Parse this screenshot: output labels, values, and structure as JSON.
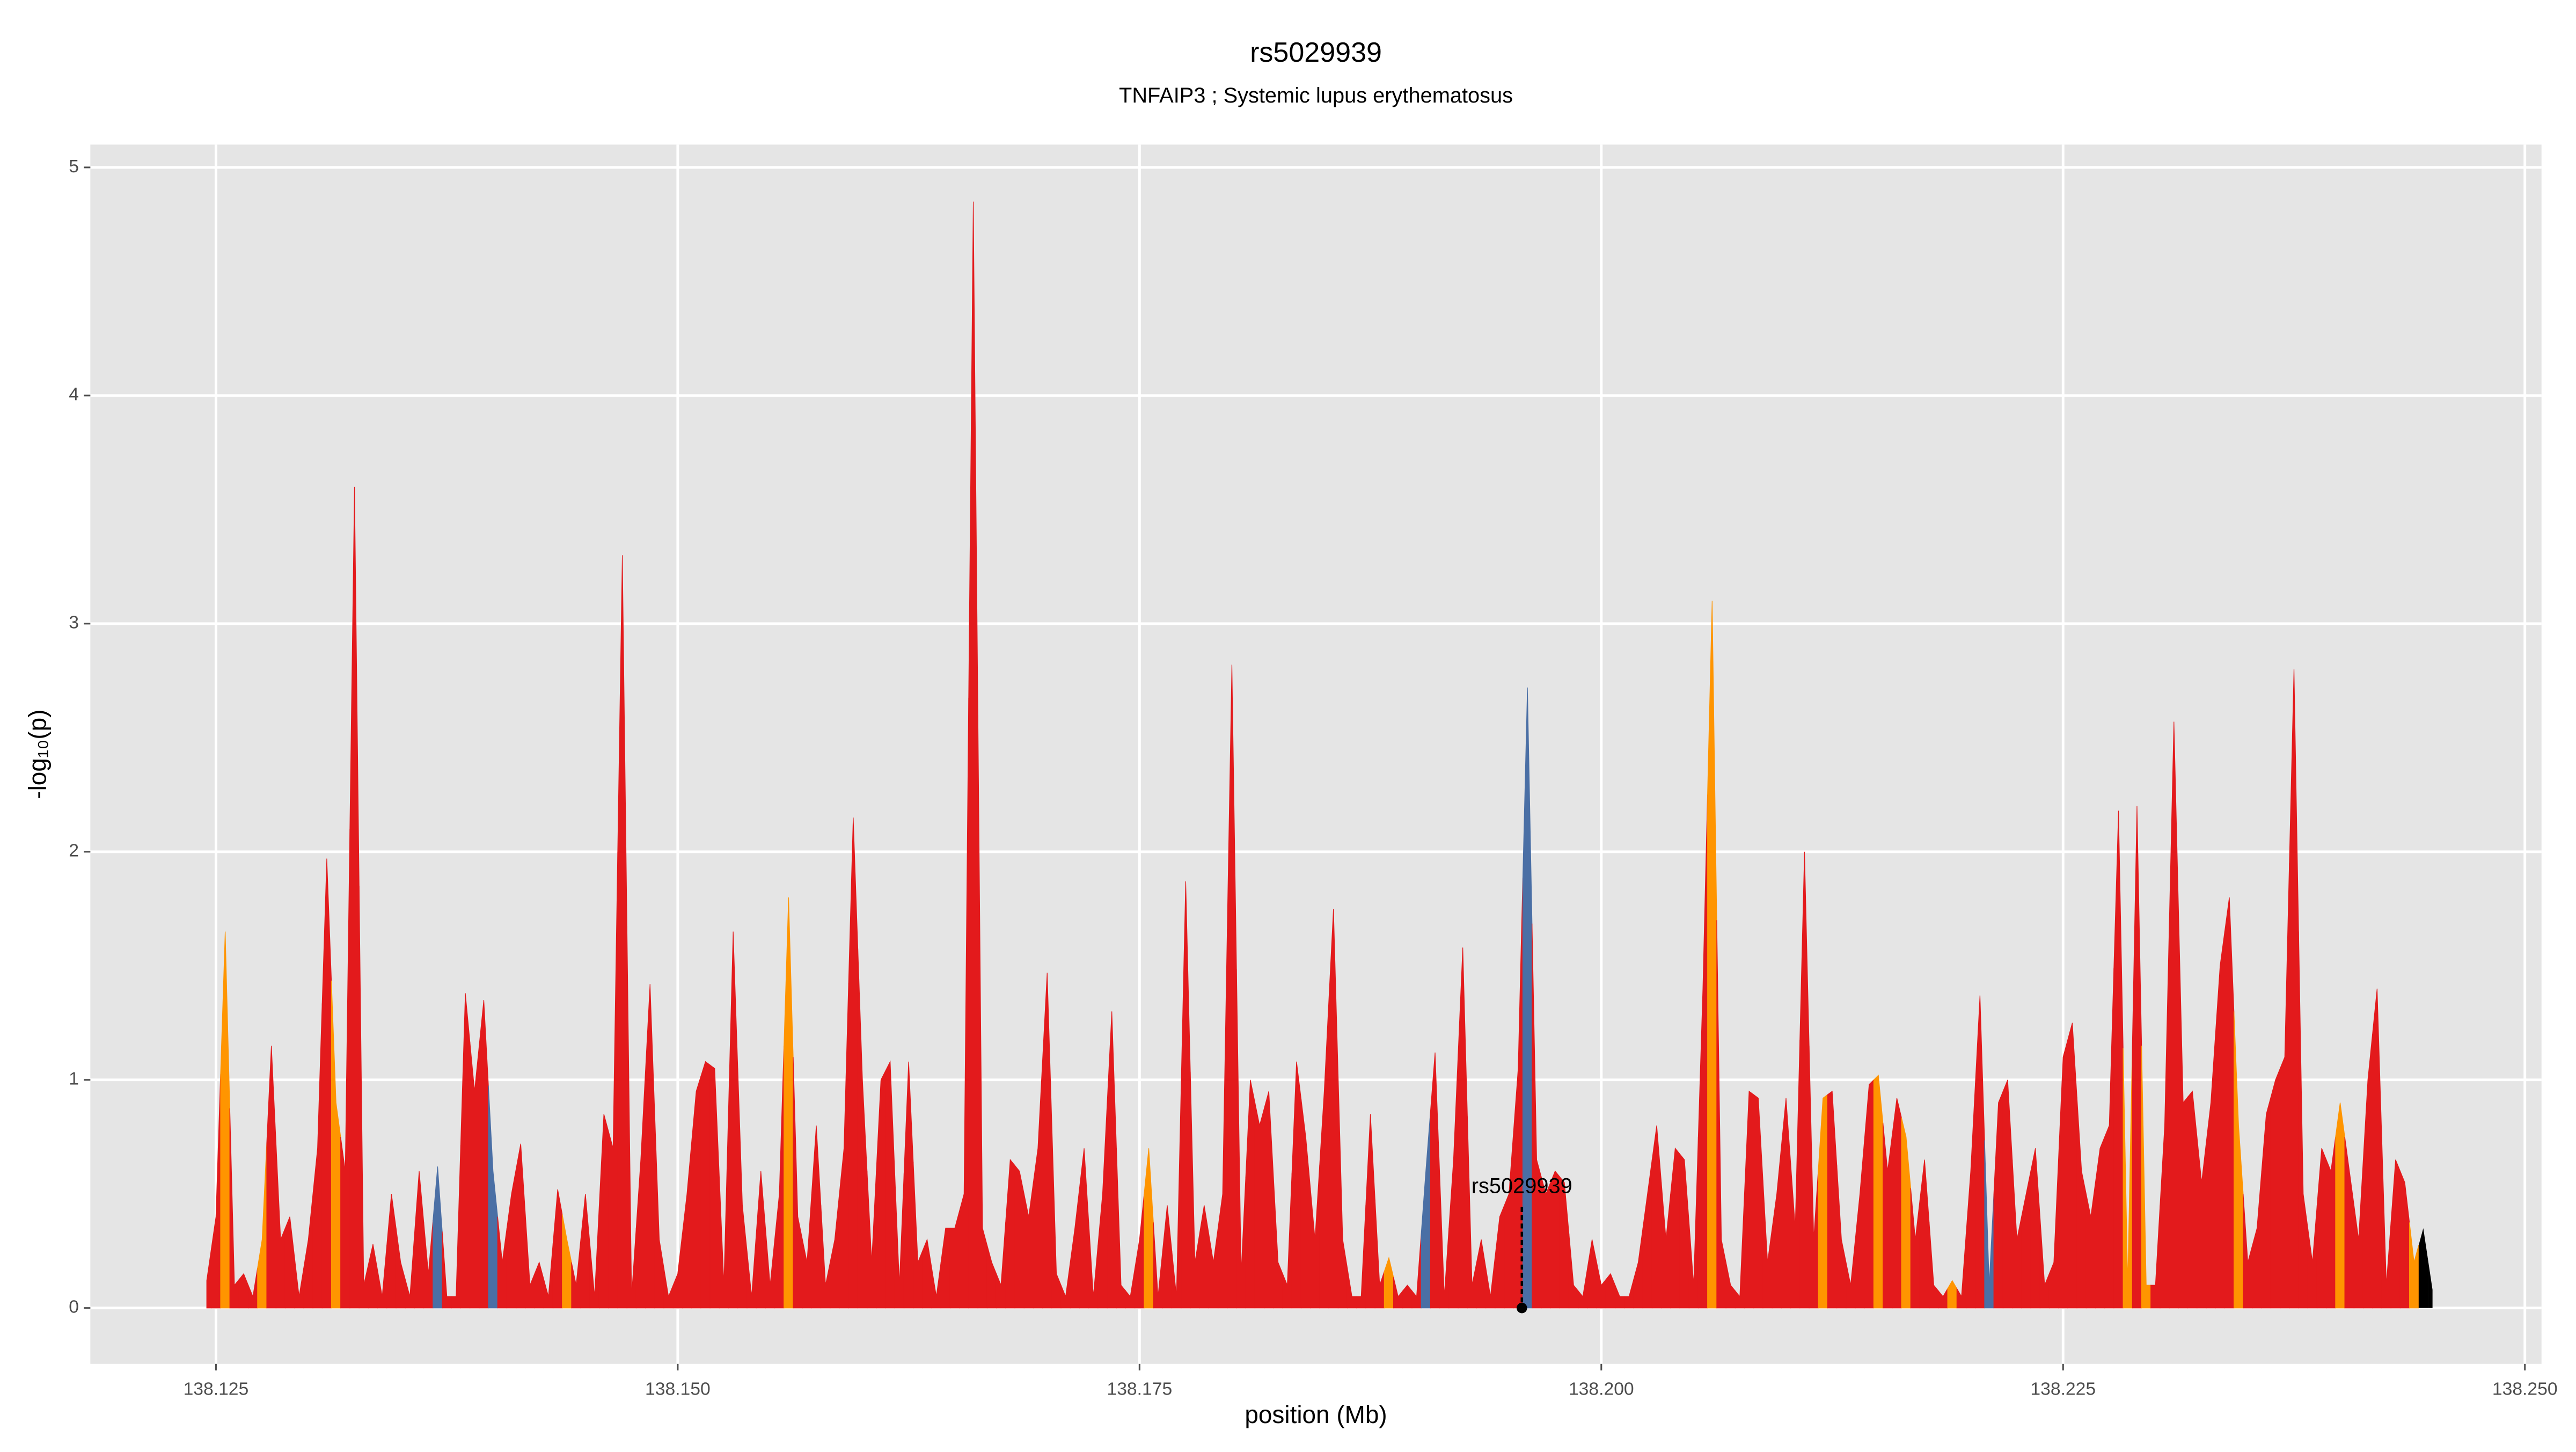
{
  "chart_data": {
    "type": "area",
    "title": "rs5029939",
    "subtitle": "TNFAIP3 ; Systemic lupus erythematosus",
    "xlabel": "position (Mb)",
    "ylabel": "-log₁₀(p)",
    "xlim": [
      138.1182,
      138.2509
    ],
    "ylim": [
      -0.245,
      5.1
    ],
    "xticks": [
      138.125,
      {
        "value": 138.15,
        "label": "138.150"
      },
      138.175,
      {
        "value": 138.2,
        "label": "138.200"
      },
      138.225,
      {
        "value": 138.25,
        "label": "138.250"
      }
    ],
    "yticks": [
      0,
      1,
      2,
      3,
      4,
      5
    ],
    "grid": true,
    "annotation": {
      "text": "rs5029939",
      "x": 138.1957,
      "y": 0.5
    },
    "x": [
      138.1245,
      138.125,
      138.1255,
      138.126,
      138.1265,
      138.127,
      138.1275,
      138.128,
      138.1285,
      138.129,
      138.1295,
      138.13,
      138.1305,
      138.131,
      138.1315,
      138.132,
      138.1325,
      138.133,
      138.1335,
      138.134,
      138.1345,
      138.135,
      138.1355,
      138.136,
      138.1365,
      138.137,
      138.1375,
      138.138,
      138.1385,
      138.139,
      138.1395,
      138.14,
      138.1405,
      138.141,
      138.1415,
      138.142,
      138.1425,
      138.143,
      138.1435,
      138.144,
      138.1445,
      138.145,
      138.1455,
      138.146,
      138.1465,
      138.147,
      138.1475,
      138.148,
      138.1485,
      138.149,
      138.1495,
      138.15,
      138.1505,
      138.151,
      138.1515,
      138.152,
      138.1525,
      138.153,
      138.1535,
      138.154,
      138.1545,
      138.155,
      138.1555,
      138.156,
      138.1565,
      138.157,
      138.1575,
      138.158,
      138.1585,
      138.159,
      138.1595,
      138.16,
      138.1605,
      138.161,
      138.1615,
      138.162,
      138.1625,
      138.163,
      138.1635,
      138.164,
      138.1645,
      138.165,
      138.1655,
      138.166,
      138.1665,
      138.167,
      138.1675,
      138.168,
      138.1685,
      138.169,
      138.1695,
      138.17,
      138.1705,
      138.171,
      138.1715,
      138.172,
      138.1725,
      138.173,
      138.1735,
      138.174,
      138.1745,
      138.175,
      138.1755,
      138.176,
      138.1765,
      138.177,
      138.1775,
      138.178,
      138.1785,
      138.179,
      138.1795,
      138.18,
      138.1805,
      138.181,
      138.1815,
      138.182,
      138.1825,
      138.183,
      138.1835,
      138.184,
      138.1845,
      138.185,
      138.1855,
      138.186,
      138.1865,
      138.187,
      138.1875,
      138.188,
      138.1885,
      138.189,
      138.1895,
      138.19,
      138.1905,
      138.191,
      138.1915,
      138.192,
      138.1925,
      138.193,
      138.1935,
      138.194,
      138.1945,
      138.195,
      138.1955,
      138.196,
      138.1965,
      138.197,
      138.1975,
      138.198,
      138.1985,
      138.199,
      138.1995,
      138.2,
      138.2005,
      138.201,
      138.2015,
      138.202,
      138.2025,
      138.203,
      138.2035,
      138.204,
      138.2045,
      138.205,
      138.2055,
      138.206,
      138.2065,
      138.207,
      138.2075,
      138.208,
      138.2085,
      138.209,
      138.2095,
      138.21,
      138.2105,
      138.211,
      138.2115,
      138.212,
      138.2125,
      138.213,
      138.2135,
      138.214,
      138.2145,
      138.215,
      138.2155,
      138.216,
      138.2165,
      138.217,
      138.2175,
      138.218,
      138.2185,
      138.219,
      138.2195,
      138.22,
      138.2205,
      138.221,
      138.2215,
      138.222,
      138.2225,
      138.223,
      138.2235,
      138.224,
      138.2245,
      138.225,
      138.2255,
      138.226,
      138.2265,
      138.227,
      138.2275,
      138.228,
      138.2285,
      138.229,
      138.2295,
      138.23,
      138.2305,
      138.231,
      138.2315,
      138.232,
      138.2325,
      138.233,
      138.2335,
      138.234,
      138.2345,
      138.235,
      138.2355,
      138.236,
      138.2365,
      138.237,
      138.2375,
      138.238,
      138.2385,
      138.239,
      138.2395,
      138.24,
      138.2405,
      138.241,
      138.2415,
      138.242,
      138.2425,
      138.243,
      138.2435,
      138.244,
      138.2445,
      138.245
    ],
    "values": [
      0.12,
      0.4,
      1.65,
      0.1,
      0.15,
      0.05,
      0.3,
      1.15,
      0.3,
      0.4,
      0.05,
      0.3,
      0.7,
      1.97,
      0.9,
      0.6,
      3.6,
      0.1,
      0.28,
      0.05,
      0.5,
      0.2,
      0.05,
      0.6,
      0.15,
      0.62,
      0.05,
      0.05,
      1.38,
      0.95,
      1.35,
      0.6,
      0.2,
      0.5,
      0.72,
      0.1,
      0.2,
      0.05,
      0.52,
      0.3,
      0.1,
      0.5,
      0.05,
      0.85,
      0.7,
      3.3,
      0.05,
      0.65,
      1.42,
      0.3,
      0.05,
      0.15,
      0.5,
      0.95,
      1.08,
      1.05,
      0.1,
      1.65,
      0.45,
      0.05,
      0.6,
      0.1,
      0.5,
      1.8,
      0.4,
      0.2,
      0.8,
      0.1,
      0.3,
      0.7,
      2.15,
      1.0,
      0.2,
      1.0,
      1.08,
      0.1,
      1.08,
      0.2,
      0.3,
      0.05,
      0.35,
      0.35,
      0.5,
      4.85,
      0.35,
      0.2,
      0.1,
      0.65,
      0.6,
      0.4,
      0.7,
      1.47,
      0.15,
      0.05,
      0.35,
      0.7,
      0.05,
      0.5,
      1.3,
      0.1,
      0.05,
      0.3,
      0.7,
      0.05,
      0.45,
      0.05,
      1.87,
      0.2,
      0.45,
      0.2,
      0.5,
      2.82,
      0.15,
      1.0,
      0.8,
      0.95,
      0.2,
      0.1,
      1.08,
      0.75,
      0.3,
      0.95,
      1.75,
      0.3,
      0.05,
      0.05,
      0.85,
      0.1,
      0.22,
      0.05,
      0.1,
      0.05,
      0.6,
      1.12,
      0.05,
      0.65,
      1.58,
      0.1,
      0.3,
      0.05,
      0.4,
      0.5,
      1.05,
      2.72,
      0.65,
      0.5,
      0.6,
      0.55,
      0.1,
      0.05,
      0.3,
      0.1,
      0.15,
      0.05,
      0.05,
      0.2,
      0.5,
      0.8,
      0.3,
      0.7,
      0.65,
      0.1,
      1.4,
      3.1,
      0.3,
      0.1,
      0.05,
      0.95,
      0.92,
      0.2,
      0.5,
      0.92,
      0.35,
      2.0,
      0.3,
      0.92,
      0.95,
      0.3,
      0.1,
      0.5,
      0.98,
      1.02,
      0.6,
      0.92,
      0.75,
      0.3,
      0.65,
      0.1,
      0.05,
      0.12,
      0.05,
      0.6,
      1.37,
      0.1,
      0.9,
      1.0,
      0.3,
      0.5,
      0.7,
      0.1,
      0.2,
      1.1,
      1.25,
      0.6,
      0.4,
      0.7,
      0.8,
      2.18,
      0.1,
      2.2,
      0.1,
      0.1,
      0.8,
      2.57,
      0.9,
      0.95,
      0.55,
      0.9,
      1.5,
      1.8,
      0.8,
      0.2,
      0.35,
      0.85,
      1.0,
      1.1,
      2.8,
      0.5,
      0.2,
      0.7,
      0.6,
      0.9,
      0.6,
      0.3,
      1.0,
      1.4,
      0.1,
      0.65,
      0.55,
      0.2,
      0.35,
      0.08
    ],
    "colors": [
      "#e31a1c",
      "#e31a1c",
      "#ff9500",
      "#e31a1c",
      "#e31a1c",
      "#e31a1c",
      "#ff9500",
      "#e31a1c",
      "#e31a1c",
      "#e31a1c",
      "#e31a1c",
      "#e31a1c",
      "#e31a1c",
      "#e31a1c",
      "#ff9500",
      "#e31a1c",
      "#e31a1c",
      "#e31a1c",
      "#e31a1c",
      "#e31a1c",
      "#e31a1c",
      "#e31a1c",
      "#e31a1c",
      "#e31a1c",
      "#e31a1c",
      "#4a6fa5",
      "#e31a1c",
      "#e31a1c",
      "#e31a1c",
      "#e31a1c",
      "#e31a1c",
      "#4a6fa5",
      "#e31a1c",
      "#e31a1c",
      "#e31a1c",
      "#e31a1c",
      "#e31a1c",
      "#e31a1c",
      "#e31a1c",
      "#ff9500",
      "#e31a1c",
      "#e31a1c",
      "#e31a1c",
      "#e31a1c",
      "#e31a1c",
      "#e31a1c",
      "#e31a1c",
      "#e31a1c",
      "#e31a1c",
      "#e31a1c",
      "#e31a1c",
      "#e31a1c",
      "#e31a1c",
      "#e31a1c",
      "#e31a1c",
      "#e31a1c",
      "#e31a1c",
      "#e31a1c",
      "#e31a1c",
      "#e31a1c",
      "#e31a1c",
      "#e31a1c",
      "#e31a1c",
      "#ff9500",
      "#e31a1c",
      "#e31a1c",
      "#e31a1c",
      "#e31a1c",
      "#e31a1c",
      "#e31a1c",
      "#e31a1c",
      "#e31a1c",
      "#e31a1c",
      "#e31a1c",
      "#e31a1c",
      "#e31a1c",
      "#e31a1c",
      "#e31a1c",
      "#e31a1c",
      "#e31a1c",
      "#e31a1c",
      "#e31a1c",
      "#e31a1c",
      "#e31a1c",
      "#e31a1c",
      "#e31a1c",
      "#e31a1c",
      "#e31a1c",
      "#e31a1c",
      "#e31a1c",
      "#e31a1c",
      "#e31a1c",
      "#e31a1c",
      "#e31a1c",
      "#e31a1c",
      "#e31a1c",
      "#e31a1c",
      "#e31a1c",
      "#e31a1c",
      "#e31a1c",
      "#e31a1c",
      "#e31a1c",
      "#ff9500",
      "#e31a1c",
      "#e31a1c",
      "#e31a1c",
      "#e31a1c",
      "#e31a1c",
      "#e31a1c",
      "#e31a1c",
      "#e31a1c",
      "#e31a1c",
      "#e31a1c",
      "#e31a1c",
      "#e31a1c",
      "#e31a1c",
      "#e31a1c",
      "#e31a1c",
      "#e31a1c",
      "#e31a1c",
      "#e31a1c",
      "#e31a1c",
      "#e31a1c",
      "#e31a1c",
      "#e31a1c",
      "#e31a1c",
      "#e31a1c",
      "#e31a1c",
      "#ff9500",
      "#e31a1c",
      "#e31a1c",
      "#e31a1c",
      "#4a6fa5",
      "#e31a1c",
      "#e31a1c",
      "#e31a1c",
      "#e31a1c",
      "#e31a1c",
      "#e31a1c",
      "#e31a1c",
      "#e31a1c",
      "#e31a1c",
      "#e31a1c",
      "#4a6fa5",
      "#e31a1c",
      "#e31a1c",
      "#e31a1c",
      "#e31a1c",
      "#e31a1c",
      "#e31a1c",
      "#e31a1c",
      "#e31a1c",
      "#e31a1c",
      "#e31a1c",
      "#e31a1c",
      "#e31a1c",
      "#e31a1c",
      "#e31a1c",
      "#e31a1c",
      "#e31a1c",
      "#e31a1c",
      "#e31a1c",
      "#e31a1c",
      "#ff9500",
      "#e31a1c",
      "#e31a1c",
      "#e31a1c",
      "#e31a1c",
      "#e31a1c",
      "#e31a1c",
      "#e31a1c",
      "#e31a1c",
      "#e31a1c",
      "#e31a1c",
      "#e31a1c",
      "#ff9500",
      "#e31a1c",
      "#e31a1c",
      "#e31a1c",
      "#e31a1c",
      "#e31a1c",
      "#ff9500",
      "#e31a1c",
      "#e31a1c",
      "#ff9500",
      "#e31a1c",
      "#e31a1c",
      "#e31a1c",
      "#e31a1c",
      "#ff9500",
      "#e31a1c",
      "#e31a1c",
      "#e31a1c",
      "#4a6fa5",
      "#e31a1c",
      "#e31a1c",
      "#e31a1c",
      "#e31a1c",
      "#e31a1c",
      "#e31a1c",
      "#e31a1c",
      "#e31a1c",
      "#e31a1c",
      "#e31a1c",
      "#e31a1c",
      "#e31a1c",
      "#e31a1c",
      "#e31a1c",
      "#ff9500",
      "#e31a1c",
      "#ff9500",
      "#e31a1c",
      "#e31a1c",
      "#e31a1c",
      "#e31a1c",
      "#e31a1c",
      "#e31a1c",
      "#e31a1c",
      "#e31a1c",
      "#e31a1c",
      "#ff9500",
      "#e31a1c",
      "#e31a1c",
      "#e31a1c",
      "#e31a1c",
      "#e31a1c",
      "#e31a1c",
      "#e31a1c",
      "#e31a1c",
      "#e31a1c",
      "#e31a1c",
      "#ff9500",
      "#e31a1c",
      "#e31a1c",
      "#e31a1c",
      "#e31a1c",
      "#e31a1c",
      "#e31a1c",
      "#e31a1c",
      "#ff9500"
    ]
  }
}
